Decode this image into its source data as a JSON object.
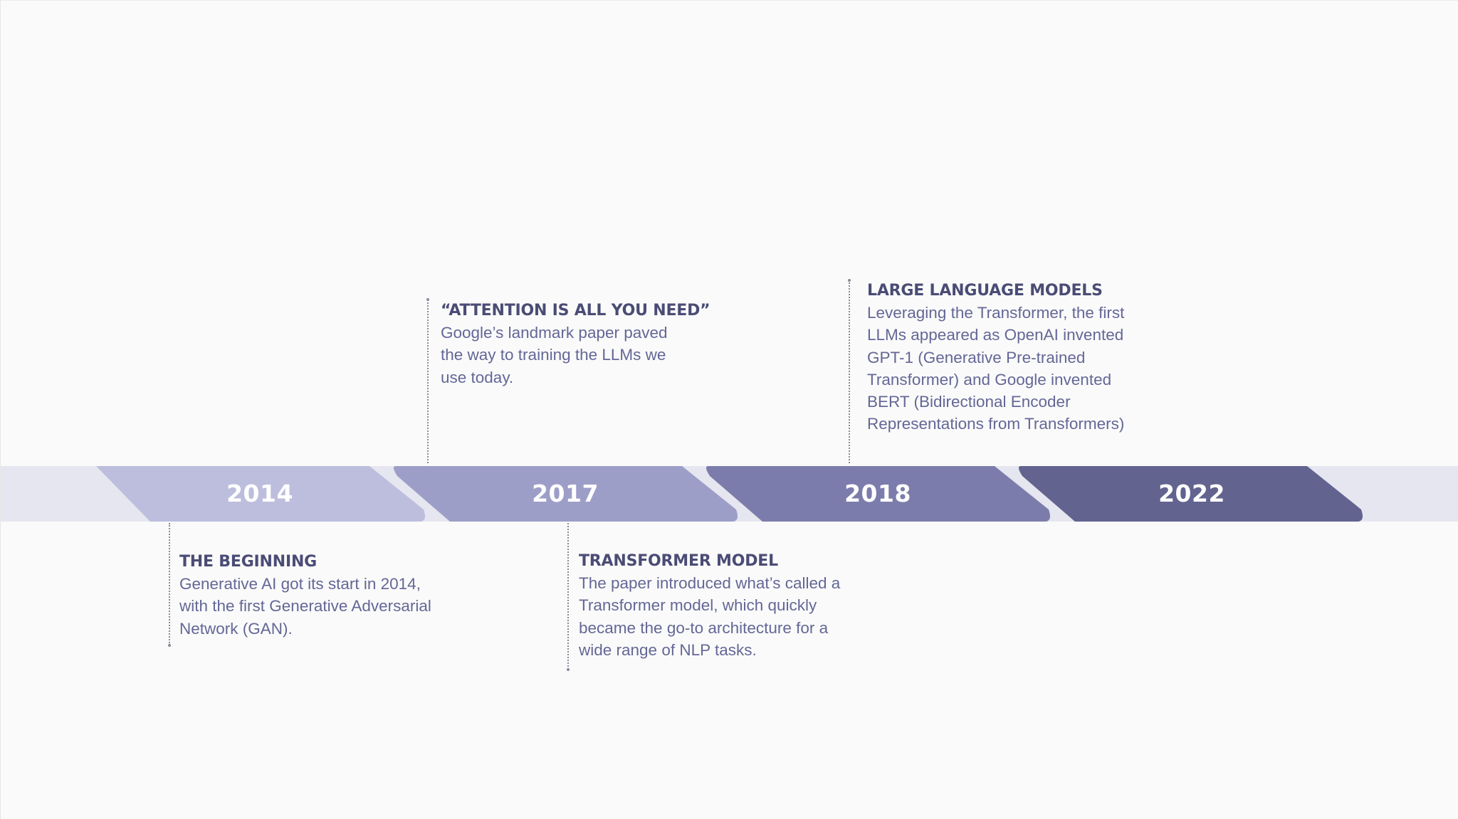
{
  "timeline": {
    "years": [
      {
        "label": "2014",
        "color": "#bdbedd"
      },
      {
        "label": "2017",
        "color": "#9d9ec8"
      },
      {
        "label": "2018",
        "color": "#7c7cac"
      },
      {
        "label": "2022",
        "color": "#62638f"
      }
    ],
    "events": [
      {
        "title": "THE BEGINNING",
        "body": "Generative AI got its start in 2014, with the first Generative Adversarial Network (GAN)."
      },
      {
        "title": "“ATTENTION IS ALL YOU NEED”",
        "body": "Google’s landmark paper paved the way to training the LLMs we use today."
      },
      {
        "title": "TRANSFORMER MODEL",
        "body": "The paper introduced what’s called a Transformer model, which quickly became the go-to architecture for a wide range of NLP tasks."
      },
      {
        "title": "LARGE LANGUAGE MODELS",
        "body": "Leveraging the Transformer, the first LLMs appeared as OpenAI invented GPT-1 (Generative Pre-trained Transformer) and Google invented BERT (Bidirectional Encoder Representations from Transformers)"
      }
    ]
  }
}
